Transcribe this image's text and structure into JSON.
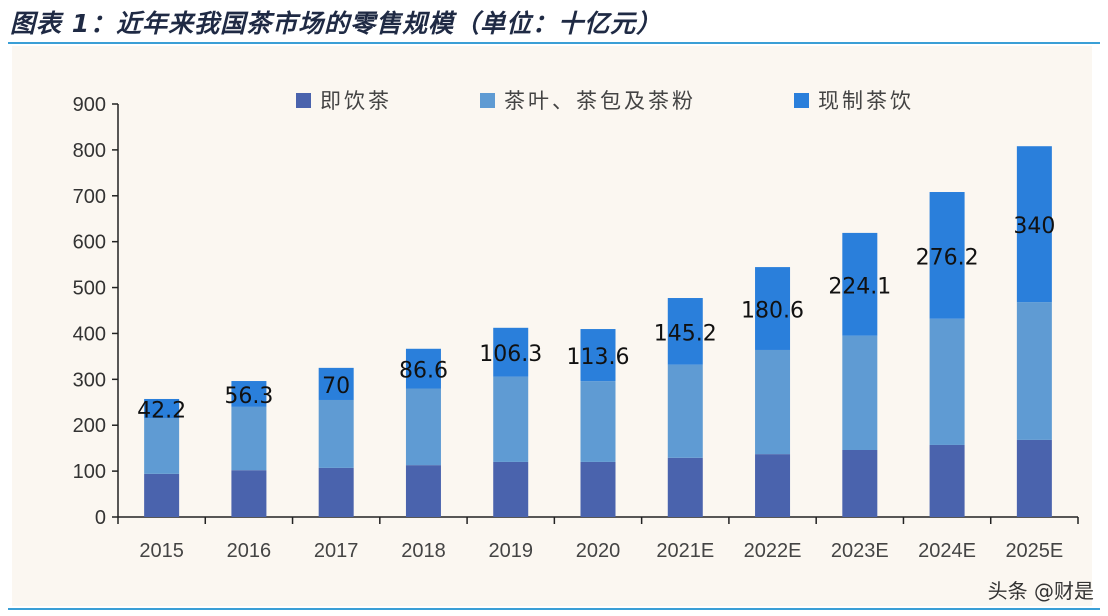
{
  "header": {
    "title": "图表 1：近年来我国茶市场的零售规模（单位：十亿元）"
  },
  "watermark": "头条 @财是",
  "chart_data": {
    "type": "bar",
    "stacked": true,
    "title": "图表 1：近年来我国茶市场的零售规模（单位：十亿元）",
    "xlabel": "",
    "ylabel": "",
    "ylim": [
      0,
      900
    ],
    "yticks": [
      0,
      100,
      200,
      300,
      400,
      500,
      600,
      700,
      800,
      900
    ],
    "legend_position": "top",
    "categories": [
      "2015",
      "2016",
      "2017",
      "2018",
      "2019",
      "2020",
      "2021E",
      "2022E",
      "2023E",
      "2024E",
      "2025E"
    ],
    "series": [
      {
        "name": "即饮茶",
        "color": "#4a63ad",
        "values": [
          94,
          102,
          107,
          113,
          120,
          120,
          129,
          137,
          146,
          157,
          168
        ]
      },
      {
        "name": "茶叶、茶包及茶粉",
        "color": "#5f9bd3",
        "values": [
          121,
          138,
          148,
          167,
          186,
          176,
          203,
          227,
          249,
          275,
          300
        ]
      },
      {
        "name": "现制茶饮",
        "color": "#2a7fdb",
        "values": [
          42.2,
          56.3,
          70,
          86.6,
          106.3,
          113.6,
          145.2,
          180.6,
          224.1,
          276.2,
          340
        ]
      }
    ],
    "data_labels": [
      "42.2",
      "56.3",
      "70",
      "86.6",
      "106.3",
      "113.6",
      "145.2",
      "180.6",
      "224.1",
      "276.2",
      "340"
    ]
  }
}
